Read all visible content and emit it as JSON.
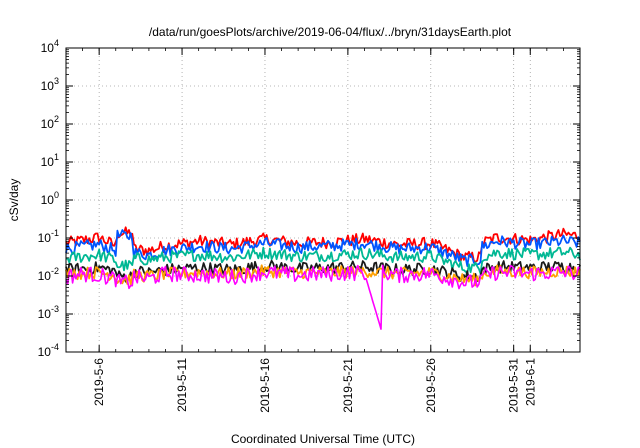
{
  "chart_data": {
    "type": "line",
    "title": "/data/run/goesPlots/archive/2019-06-04/flux/../bryn/31daysEarth.plot",
    "xlabel": "Coordinated Universal Time (UTC)",
    "ylabel": "cSv/day",
    "yscale": "log",
    "ylim": [
      0.0001,
      10000
    ],
    "xlim": [
      "2019-05-04",
      "2019-06-04"
    ],
    "grid": true,
    "legend": "none",
    "y_ticks": [
      {
        "base": "10",
        "exp": "-4"
      },
      {
        "base": "10",
        "exp": "-3"
      },
      {
        "base": "10",
        "exp": "-2"
      },
      {
        "base": "10",
        "exp": "-1"
      },
      {
        "base": "10",
        "exp": "0"
      },
      {
        "base": "10",
        "exp": "1"
      },
      {
        "base": "10",
        "exp": "2"
      },
      {
        "base": "10",
        "exp": "3"
      },
      {
        "base": "10",
        "exp": "4"
      }
    ],
    "x_ticks": [
      {
        "label": "2019-5-6",
        "date": "2019-05-06"
      },
      {
        "label": "2019-5-11",
        "date": "2019-05-11"
      },
      {
        "label": "2019-5-16",
        "date": "2019-05-16"
      },
      {
        "label": "2019-5-21",
        "date": "2019-05-21"
      },
      {
        "label": "2019-5-26",
        "date": "2019-05-26"
      },
      {
        "label": "2019-5-31",
        "date": "2019-05-31"
      },
      {
        "label": "2019-6-1",
        "date": "2019-06-01"
      }
    ],
    "series": [
      {
        "color": "#ff0000",
        "x": [
          "2019-05-04",
          "2019-05-06",
          "2019-05-07",
          "2019-05-07",
          "2019-05-08",
          "2019-05-08",
          "2019-05-09",
          "2019-05-10",
          "2019-05-12",
          "2019-05-14",
          "2019-05-16",
          "2019-05-18",
          "2019-05-20",
          "2019-05-22",
          "2019-05-24",
          "2019-05-26",
          "2019-05-28",
          "2019-05-29",
          "2019-05-29",
          "2019-05-30",
          "2019-06-01",
          "2019-06-03",
          "2019-06-04"
        ],
        "y": [
          0.07,
          0.1,
          0.06,
          0.13,
          0.13,
          0.05,
          0.045,
          0.06,
          0.08,
          0.065,
          0.09,
          0.07,
          0.075,
          0.09,
          0.065,
          0.07,
          0.03,
          0.03,
          0.07,
          0.1,
          0.085,
          0.12,
          0.11
        ]
      },
      {
        "color": "#0055ff",
        "x": [
          "2019-05-04",
          "2019-05-06",
          "2019-05-07",
          "2019-05-07",
          "2019-05-08",
          "2019-05-08",
          "2019-05-09",
          "2019-05-10",
          "2019-05-12",
          "2019-05-14",
          "2019-05-16",
          "2019-05-18",
          "2019-05-20",
          "2019-05-22",
          "2019-05-24",
          "2019-05-26",
          "2019-05-28",
          "2019-05-29",
          "2019-05-29",
          "2019-05-30",
          "2019-06-01",
          "2019-06-03",
          "2019-06-04"
        ],
        "y": [
          0.05,
          0.065,
          0.045,
          0.11,
          0.11,
          0.04,
          0.035,
          0.045,
          0.06,
          0.05,
          0.07,
          0.055,
          0.06,
          0.07,
          0.05,
          0.055,
          0.025,
          0.025,
          0.055,
          0.08,
          0.065,
          0.08,
          0.07
        ]
      },
      {
        "color": "#00b894",
        "x": [
          "2019-05-04",
          "2019-05-06",
          "2019-05-07",
          "2019-05-07",
          "2019-05-08",
          "2019-05-08",
          "2019-05-09",
          "2019-05-10",
          "2019-05-12",
          "2019-05-14",
          "2019-05-16",
          "2019-05-18",
          "2019-05-20",
          "2019-05-22",
          "2019-05-24",
          "2019-05-26",
          "2019-05-28",
          "2019-05-29",
          "2019-05-29",
          "2019-05-30",
          "2019-06-01",
          "2019-06-03",
          "2019-06-04"
        ],
        "y": [
          0.028,
          0.035,
          0.025,
          0.018,
          0.018,
          0.028,
          0.026,
          0.03,
          0.035,
          0.03,
          0.04,
          0.032,
          0.034,
          0.038,
          0.03,
          0.032,
          0.016,
          0.016,
          0.03,
          0.04,
          0.035,
          0.04,
          0.035
        ]
      },
      {
        "color": "#1a1a1a",
        "x": [
          "2019-05-04",
          "2019-05-06",
          "2019-05-07",
          "2019-05-07",
          "2019-05-08",
          "2019-05-08",
          "2019-05-09",
          "2019-05-10",
          "2019-05-12",
          "2019-05-14",
          "2019-05-16",
          "2019-05-18",
          "2019-05-20",
          "2019-05-22",
          "2019-05-24",
          "2019-05-26",
          "2019-05-28",
          "2019-05-29",
          "2019-05-29",
          "2019-05-30",
          "2019-06-01",
          "2019-06-03",
          "2019-06-04"
        ],
        "y": [
          0.014,
          0.016,
          0.013,
          0.0095,
          0.0095,
          0.013,
          0.012,
          0.014,
          0.016,
          0.014,
          0.018,
          0.015,
          0.016,
          0.017,
          0.014,
          0.015,
          0.0095,
          0.0095,
          0.014,
          0.017,
          0.016,
          0.017,
          0.016
        ]
      },
      {
        "color": "#ffa000",
        "x": [
          "2019-05-04",
          "2019-05-06",
          "2019-05-07",
          "2019-05-07",
          "2019-05-08",
          "2019-05-08",
          "2019-05-09",
          "2019-05-10",
          "2019-05-12",
          "2019-05-14",
          "2019-05-16",
          "2019-05-18",
          "2019-05-20",
          "2019-05-22",
          "2019-05-24",
          "2019-05-26",
          "2019-05-28",
          "2019-05-29",
          "2019-05-29",
          "2019-05-30",
          "2019-06-01",
          "2019-06-03",
          "2019-06-04"
        ],
        "y": [
          0.011,
          0.012,
          0.01,
          0.0078,
          0.0078,
          0.01,
          0.0095,
          0.011,
          0.012,
          0.011,
          0.013,
          0.012,
          0.012,
          0.013,
          0.011,
          0.012,
          0.0078,
          0.0078,
          0.011,
          0.013,
          0.012,
          0.013,
          0.012
        ]
      },
      {
        "color": "#ff00ff",
        "x": [
          "2019-05-04",
          "2019-05-05",
          "2019-05-06",
          "2019-05-07",
          "2019-05-07",
          "2019-05-08",
          "2019-05-08",
          "2019-05-09",
          "2019-05-10",
          "2019-05-12",
          "2019-05-14",
          "2019-05-16",
          "2019-05-18",
          "2019-05-20",
          "2019-05-22",
          "2019-05-23",
          "2019-05-23",
          "2019-05-24",
          "2019-05-26",
          "2019-05-28",
          "2019-05-29",
          "2019-05-29",
          "2019-05-30",
          "2019-06-01",
          "2019-06-03",
          "2019-06-04"
        ],
        "y": [
          0.009,
          0.011,
          0.01,
          0.008,
          0.0065,
          0.0065,
          0.009,
          0.008,
          0.011,
          0.01,
          0.009,
          0.012,
          0.01,
          0.011,
          0.012,
          0.0004,
          0.012,
          0.01,
          0.011,
          0.0065,
          0.0065,
          0.009,
          0.012,
          0.011,
          0.012,
          0.011
        ]
      }
    ]
  }
}
